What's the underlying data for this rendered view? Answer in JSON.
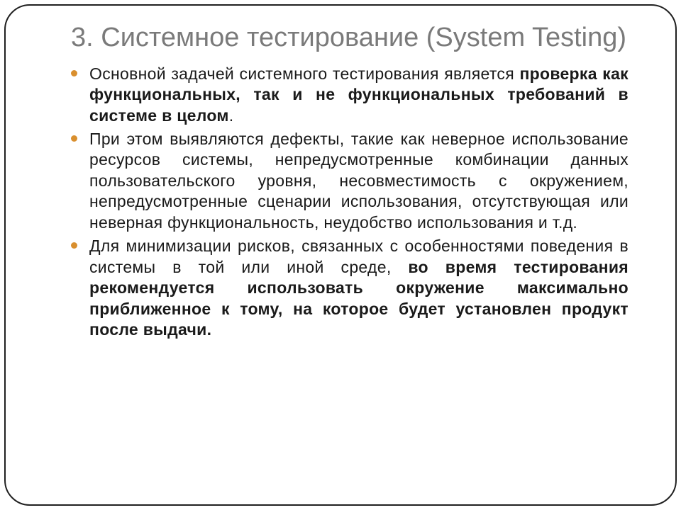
{
  "title": "3. Системное тестирование (System Testing)",
  "bullets": [
    {
      "pre": "Основной задачей системного тестирования является ",
      "bold": "проверка как функциональных, так и не функциональных требований в системе в целом",
      "post": "."
    },
    {
      "pre": "При этом выявляются дефекты, такие как неверное использование ресурсов системы, непредусмотренные комбинации данных пользовательского уровня, несовместимость с окружением, непредусмотренные сценарии использования, отсутствующая или неверная функциональность, неудобство использования и т.д.",
      "bold": "",
      "post": ""
    },
    {
      "pre": "Для минимизации рисков, связанных с особенностями поведения в системы в той или иной среде, ",
      "bold": "во время тестирования рекомендуется использовать окружение максимально приближенное к тому, на которое будет установлен продукт после выдачи.",
      "post": ""
    }
  ],
  "colors": {
    "bullet": "#d98f2e",
    "title": "#7a7a7a",
    "text": "#1a1a1a",
    "frame": "#202020",
    "background": "#ffffff"
  },
  "typography": {
    "title_fontsize": 38,
    "body_fontsize": 23,
    "font_family": "Trebuchet MS"
  },
  "frame": {
    "border_radius": 36,
    "border_width": 2
  }
}
